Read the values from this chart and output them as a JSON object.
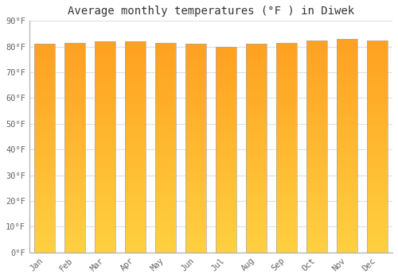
{
  "title": "Average monthly temperatures (°F ) in Diwek",
  "months": [
    "Jan",
    "Feb",
    "Mar",
    "Apr",
    "May",
    "Jun",
    "Jul",
    "Aug",
    "Sep",
    "Oct",
    "Nov",
    "Dec"
  ],
  "values": [
    81.0,
    81.5,
    82.0,
    82.0,
    81.5,
    81.0,
    80.0,
    81.0,
    81.5,
    82.5,
    83.0,
    82.5
  ],
  "ylim": [
    0,
    90
  ],
  "yticks": [
    0,
    10,
    20,
    30,
    40,
    50,
    60,
    70,
    80,
    90
  ],
  "bar_color_bottom": "#FFD040",
  "bar_color_top": "#FFA020",
  "bar_edge_color": "#AAAAAA",
  "background_color": "#FFFFFF",
  "plot_bg_color": "#FFFFFF",
  "grid_color": "#E0E0E0",
  "title_fontsize": 10,
  "tick_fontsize": 7.5,
  "tick_color": "#666666",
  "title_color": "#333333",
  "font_family": "monospace",
  "bar_width": 0.7,
  "gradient_steps": 100
}
